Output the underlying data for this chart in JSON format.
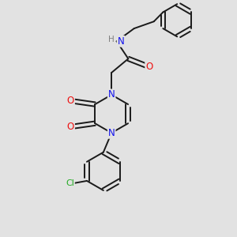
{
  "background_color": "#e2e2e2",
  "bond_color": "#1a1a1a",
  "bond_width": 1.4,
  "atom_colors": {
    "N": "#1010ee",
    "O": "#ee1010",
    "Cl": "#22aa22",
    "H": "#808080"
  },
  "font_size": 8.5
}
